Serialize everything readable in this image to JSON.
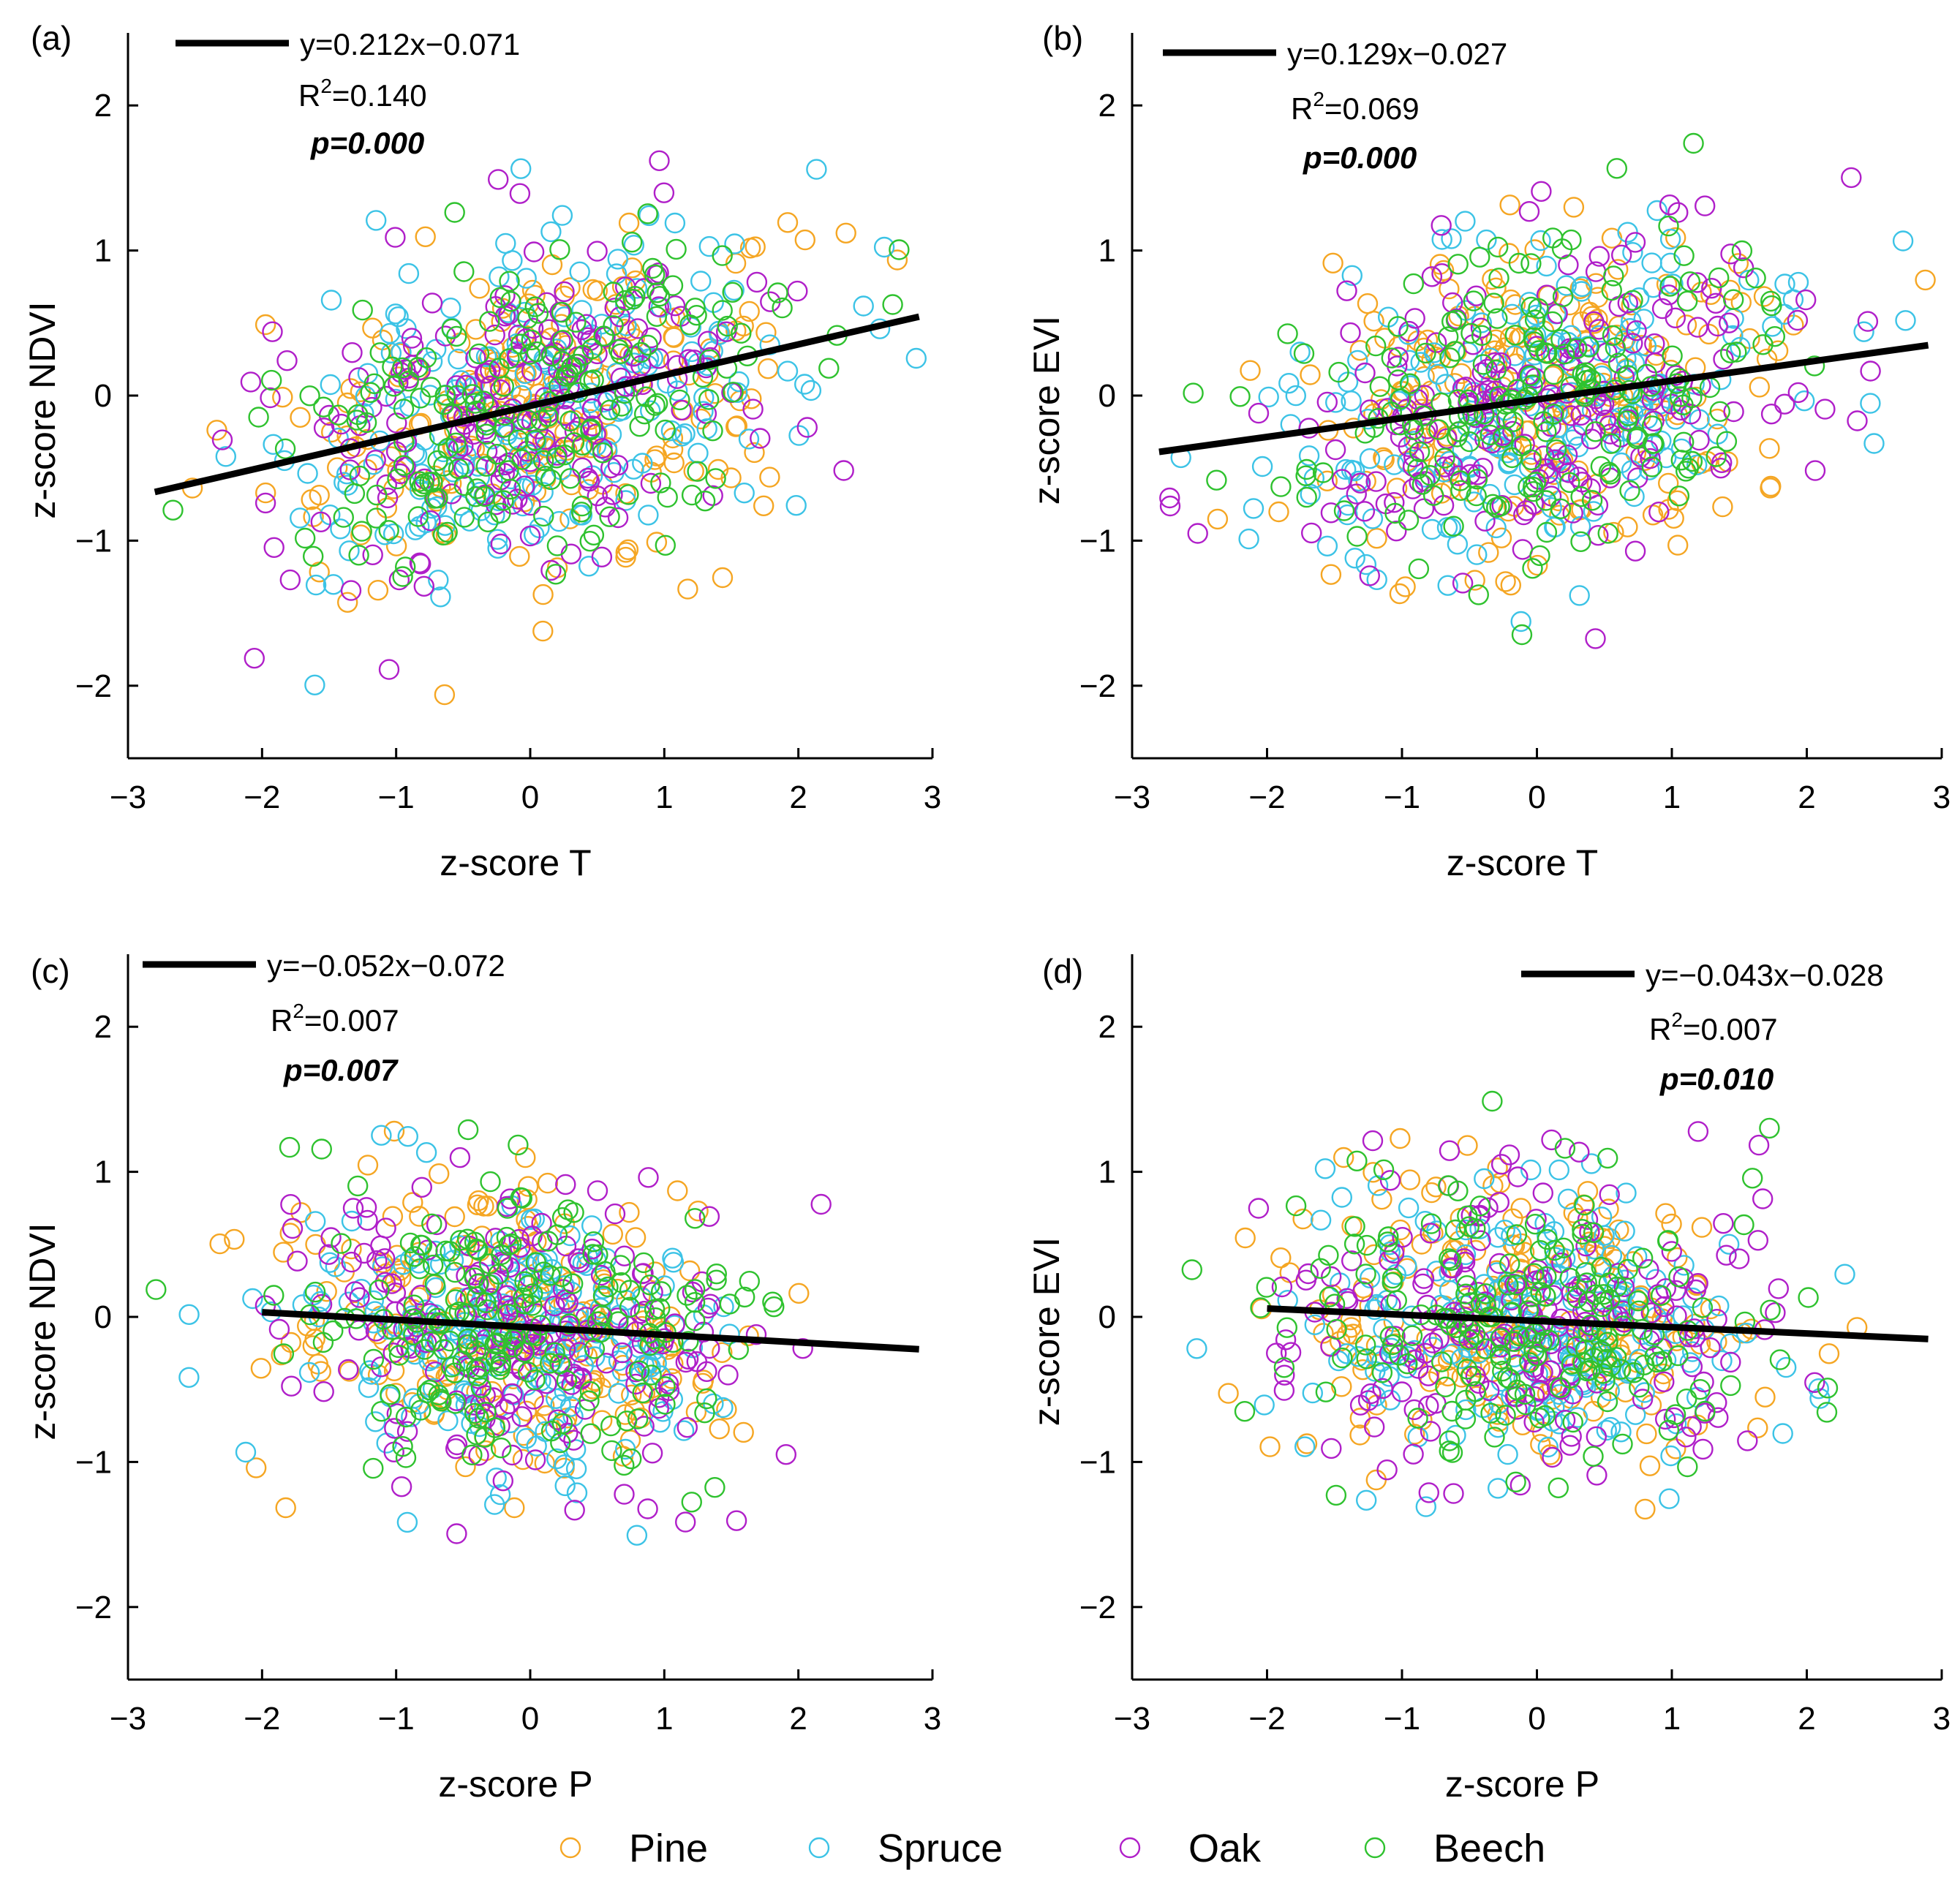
{
  "chart_data": [
    {
      "type": "scatter",
      "panel_label": "(a)",
      "xlabel": "z-score T",
      "ylabel": "z-score NDVI",
      "xlim": [
        -3,
        3
      ],
      "ylim": [
        -2.5,
        2.5
      ],
      "xticks": [
        "−3",
        "−2",
        "−1",
        "0",
        "1",
        "2",
        "3"
      ],
      "yticks": [
        "−2",
        "−1",
        "0",
        "1",
        "2"
      ],
      "fit": {
        "slope": 0.212,
        "intercept": -0.071,
        "x_range": [
          -2.8,
          2.9
        ]
      },
      "equation": "y=0.212x−0.071",
      "r2_label": "R",
      "r2_sup": "2",
      "r2_value": "=0.140",
      "p_value": "p=0.000"
    },
    {
      "type": "scatter",
      "panel_label": "(b)",
      "xlabel": "z-score T",
      "ylabel": "z-score EVI",
      "xlim": [
        -3,
        3
      ],
      "ylim": [
        -2.5,
        2.5
      ],
      "xticks": [
        "−3",
        "−2",
        "−1",
        "0",
        "1",
        "2",
        "3"
      ],
      "yticks": [
        "−2",
        "−1",
        "0",
        "1",
        "2"
      ],
      "fit": {
        "slope": 0.129,
        "intercept": -0.027,
        "x_range": [
          -2.8,
          2.9
        ]
      },
      "equation": "y=0.129x−0.027",
      "r2_label": "R",
      "r2_sup": "2",
      "r2_value": "=0.069",
      "p_value": "p=0.000"
    },
    {
      "type": "scatter",
      "panel_label": "(c)",
      "xlabel": "z-score P",
      "ylabel": "z-score NDVI",
      "xlim": [
        -3,
        3
      ],
      "ylim": [
        -2.5,
        2.5
      ],
      "xticks": [
        "−3",
        "−2",
        "−1",
        "0",
        "1",
        "2",
        "3"
      ],
      "yticks": [
        "−2",
        "−1",
        "0",
        "1",
        "2"
      ],
      "fit": {
        "slope": -0.052,
        "intercept": -0.072,
        "x_range": [
          -2.0,
          2.9
        ]
      },
      "equation": "y=−0.052x−0.072",
      "r2_label": "R",
      "r2_sup": "2",
      "r2_value": "=0.007",
      "p_value": "p=0.007"
    },
    {
      "type": "scatter",
      "panel_label": "(d)",
      "xlabel": "z-score P",
      "ylabel": "z-score EVI",
      "xlim": [
        -3,
        3
      ],
      "ylim": [
        -2.5,
        2.5
      ],
      "xticks": [
        "−3",
        "−2",
        "−1",
        "0",
        "1",
        "2",
        "3"
      ],
      "yticks": [
        "−2",
        "−1",
        "0",
        "1",
        "2"
      ],
      "fit": {
        "slope": -0.043,
        "intercept": -0.028,
        "x_range": [
          -2.0,
          2.9
        ]
      },
      "equation": "y=−0.043x−0.028",
      "r2_label": "R",
      "r2_sup": "2",
      "r2_value": "=0.007",
      "p_value": "p=0.010"
    }
  ],
  "legend": [
    {
      "name": "Pine",
      "color": "#f5a623"
    },
    {
      "name": "Spruce",
      "color": "#3cc3e6"
    },
    {
      "name": "Oak",
      "color": "#b01fc9"
    },
    {
      "name": "Beech",
      "color": "#2fc22f"
    }
  ],
  "marker": "open-circle"
}
